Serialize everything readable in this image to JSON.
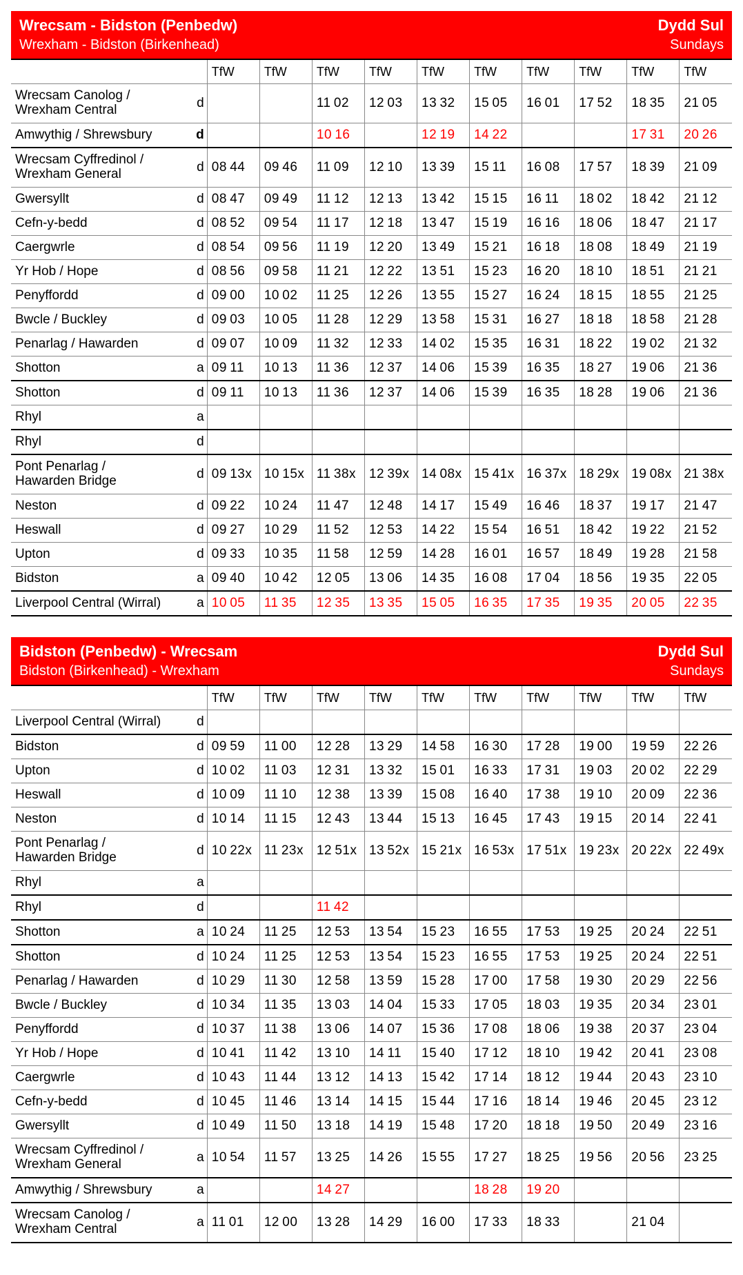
{
  "tables": [
    {
      "title_cy": "Wrecsam - Bidston (Penbedw)",
      "title_en": "Wrexham - Bidston (Birkenhead)",
      "day_cy": "Dydd Sul",
      "day_en": "Sundays",
      "operators": [
        "TfW",
        "TfW",
        "TfW",
        "TfW",
        "TfW",
        "TfW",
        "TfW",
        "TfW",
        "TfW",
        "TfW"
      ],
      "rows": [
        {
          "station": "Wrecsam Canolog /\nWrexham Central",
          "ad": "d",
          "tall": true,
          "times": [
            "",
            "",
            "1102",
            "1203",
            "1332",
            "1505",
            "1601",
            "1752",
            "1835",
            "2105"
          ]
        },
        {
          "station": "Amwythig / Shrewsbury",
          "ad": "d",
          "bold_ad": true,
          "times": [
            "",
            "",
            "1016",
            "",
            "1219",
            "1422",
            "",
            "",
            "1731",
            "2026"
          ],
          "red": [
            2,
            4,
            5,
            8,
            9
          ],
          "thick_bottom": true
        },
        {
          "station": "Wrecsam Cyffredinol /\nWrexham General",
          "ad": "d",
          "tall": true,
          "times": [
            "0844",
            "0946",
            "1109",
            "1210",
            "1339",
            "1511",
            "1608",
            "1757",
            "1839",
            "2109"
          ]
        },
        {
          "station": "Gwersyllt",
          "ad": "d",
          "times": [
            "0847",
            "0949",
            "1112",
            "1213",
            "1342",
            "1515",
            "1611",
            "1802",
            "1842",
            "2112"
          ]
        },
        {
          "station": "Cefn-y-bedd",
          "ad": "d",
          "times": [
            "0852",
            "0954",
            "1117",
            "1218",
            "1347",
            "1519",
            "1616",
            "1806",
            "1847",
            "2117"
          ]
        },
        {
          "station": "Caergwrle",
          "ad": "d",
          "times": [
            "0854",
            "0956",
            "1119",
            "1220",
            "1349",
            "1521",
            "1618",
            "1808",
            "1849",
            "2119"
          ]
        },
        {
          "station": "Yr Hob / Hope",
          "ad": "d",
          "times": [
            "0856",
            "0958",
            "1121",
            "1222",
            "1351",
            "1523",
            "1620",
            "1810",
            "1851",
            "2121"
          ]
        },
        {
          "station": "Penyffordd",
          "ad": "d",
          "times": [
            "0900",
            "1002",
            "1125",
            "1226",
            "1355",
            "1527",
            "1624",
            "1815",
            "1855",
            "2125"
          ]
        },
        {
          "station": "Bwcle / Buckley",
          "ad": "d",
          "times": [
            "0903",
            "1005",
            "1128",
            "1229",
            "1358",
            "1531",
            "1627",
            "1818",
            "1858",
            "2128"
          ]
        },
        {
          "station": "Penarlag / Hawarden",
          "ad": "d",
          "times": [
            "0907",
            "1009",
            "1132",
            "1233",
            "1402",
            "1535",
            "1631",
            "1822",
            "1902",
            "2132"
          ]
        },
        {
          "station": "Shotton",
          "ad": "a",
          "times": [
            "0911",
            "1013",
            "1136",
            "1237",
            "1406",
            "1539",
            "1635",
            "1827",
            "1906",
            "2136"
          ],
          "thick_bottom": true
        },
        {
          "station": "Shotton",
          "ad": "d",
          "times": [
            "0911",
            "1013",
            "1136",
            "1237",
            "1406",
            "1539",
            "1635",
            "1828",
            "1906",
            "2136"
          ]
        },
        {
          "station": "Rhyl",
          "ad": "a",
          "times": [
            "",
            "",
            "",
            "",
            "",
            "",
            "",
            "",
            "",
            ""
          ],
          "thick_bottom": true
        },
        {
          "station": "Rhyl",
          "ad": "d",
          "times": [
            "",
            "",
            "",
            "",
            "",
            "",
            "",
            "",
            "",
            ""
          ],
          "thick_bottom": true
        },
        {
          "station": "Pont Penarlag /\nHawarden Bridge",
          "ad": "d",
          "tall": true,
          "times": [
            "0913x",
            "1015x",
            "1138x",
            "1239x",
            "1408x",
            "1541x",
            "1637x",
            "1829x",
            "1908x",
            "2138x"
          ]
        },
        {
          "station": "Neston",
          "ad": "d",
          "times": [
            "0922",
            "1024",
            "1147",
            "1248",
            "1417",
            "1549",
            "1646",
            "1837",
            "1917",
            "2147"
          ]
        },
        {
          "station": "Heswall",
          "ad": "d",
          "times": [
            "0927",
            "1029",
            "1152",
            "1253",
            "1422",
            "1554",
            "1651",
            "1842",
            "1922",
            "2152"
          ]
        },
        {
          "station": "Upton",
          "ad": "d",
          "times": [
            "0933",
            "1035",
            "1158",
            "1259",
            "1428",
            "1601",
            "1657",
            "1849",
            "1928",
            "2158"
          ]
        },
        {
          "station": "Bidston",
          "ad": "a",
          "times": [
            "0940",
            "1042",
            "1205",
            "1306",
            "1435",
            "1608",
            "1704",
            "1856",
            "1935",
            "2205"
          ],
          "thick_bottom": true
        },
        {
          "station": "Liverpool Central (Wirral)",
          "ad": "a",
          "times": [
            "1005",
            "1135",
            "1235",
            "1335",
            "1505",
            "1635",
            "1735",
            "1935",
            "2005",
            "2235"
          ],
          "red": [
            0,
            1,
            2,
            3,
            4,
            5,
            6,
            7,
            8,
            9
          ],
          "thick_bottom": true
        }
      ]
    },
    {
      "title_cy": "Bidston (Penbedw) - Wrecsam",
      "title_en": "Bidston (Birkenhead) - Wrexham",
      "day_cy": "Dydd Sul",
      "day_en": "Sundays",
      "operators": [
        "TfW",
        "TfW",
        "TfW",
        "TfW",
        "TfW",
        "TfW",
        "TfW",
        "TfW",
        "TfW",
        "TfW"
      ],
      "rows": [
        {
          "station": "Liverpool Central (Wirral)",
          "ad": "d",
          "times": [
            "",
            "",
            "",
            "",
            "",
            "",
            "",
            "",
            "",
            ""
          ],
          "thick_bottom": true
        },
        {
          "station": "Bidston",
          "ad": "d",
          "times": [
            "0959",
            "1100",
            "1228",
            "1329",
            "1458",
            "1630",
            "1728",
            "1900",
            "1959",
            "2226"
          ]
        },
        {
          "station": "Upton",
          "ad": "d",
          "times": [
            "1002",
            "1103",
            "1231",
            "1332",
            "1501",
            "1633",
            "1731",
            "1903",
            "2002",
            "2229"
          ]
        },
        {
          "station": "Heswall",
          "ad": "d",
          "times": [
            "1009",
            "1110",
            "1238",
            "1339",
            "1508",
            "1640",
            "1738",
            "1910",
            "2009",
            "2236"
          ]
        },
        {
          "station": "Neston",
          "ad": "d",
          "times": [
            "1014",
            "1115",
            "1243",
            "1344",
            "1513",
            "1645",
            "1743",
            "1915",
            "2014",
            "2241"
          ]
        },
        {
          "station": "Pont Penarlag /\nHawarden Bridge",
          "ad": "d",
          "tall": true,
          "times": [
            "1022x",
            "1123x",
            "1251x",
            "1352x",
            "1521x",
            "1653x",
            "1751x",
            "1923x",
            "2022x",
            "2249x"
          ]
        },
        {
          "station": "Rhyl",
          "ad": "a",
          "times": [
            "",
            "",
            "",
            "",
            "",
            "",
            "",
            "",
            "",
            ""
          ],
          "thick_bottom": true
        },
        {
          "station": "Rhyl",
          "ad": "d",
          "times": [
            "",
            "",
            "1142",
            "",
            "",
            "",
            "",
            "",
            "",
            ""
          ],
          "red": [
            2
          ],
          "thick_bottom": true
        },
        {
          "station": "Shotton",
          "ad": "a",
          "times": [
            "1024",
            "1125",
            "1253",
            "1354",
            "1523",
            "1655",
            "1753",
            "1925",
            "2024",
            "2251"
          ],
          "thick_bottom": true
        },
        {
          "station": "Shotton",
          "ad": "d",
          "times": [
            "1024",
            "1125",
            "1253",
            "1354",
            "1523",
            "1655",
            "1753",
            "1925",
            "2024",
            "2251"
          ]
        },
        {
          "station": "Penarlag / Hawarden",
          "ad": "d",
          "times": [
            "1029",
            "1130",
            "1258",
            "1359",
            "1528",
            "1700",
            "1758",
            "1930",
            "2029",
            "2256"
          ]
        },
        {
          "station": "Bwcle / Buckley",
          "ad": "d",
          "times": [
            "1034",
            "1135",
            "1303",
            "1404",
            "1533",
            "1705",
            "1803",
            "1935",
            "2034",
            "2301"
          ]
        },
        {
          "station": "Penyffordd",
          "ad": "d",
          "times": [
            "1037",
            "1138",
            "1306",
            "1407",
            "1536",
            "1708",
            "1806",
            "1938",
            "2037",
            "2304"
          ]
        },
        {
          "station": "Yr Hob / Hope",
          "ad": "d",
          "times": [
            "1041",
            "1142",
            "1310",
            "1411",
            "1540",
            "1712",
            "1810",
            "1942",
            "2041",
            "2308"
          ]
        },
        {
          "station": "Caergwrle",
          "ad": "d",
          "times": [
            "1043",
            "1144",
            "1312",
            "1413",
            "1542",
            "1714",
            "1812",
            "1944",
            "2043",
            "2310"
          ]
        },
        {
          "station": "Cefn-y-bedd",
          "ad": "d",
          "times": [
            "1045",
            "1146",
            "1314",
            "1415",
            "1544",
            "1716",
            "1814",
            "1946",
            "2045",
            "2312"
          ]
        },
        {
          "station": "Gwersyllt",
          "ad": "d",
          "times": [
            "1049",
            "1150",
            "1318",
            "1419",
            "1548",
            "1720",
            "1818",
            "1950",
            "2049",
            "2316"
          ]
        },
        {
          "station": "Wrecsam Cyffredinol /\nWrexham General",
          "ad": "a",
          "tall": true,
          "times": [
            "1054",
            "1157",
            "1325",
            "1426",
            "1555",
            "1727",
            "1825",
            "1956",
            "2056",
            "2325"
          ],
          "thick_bottom": true
        },
        {
          "station": "Amwythig / Shrewsbury",
          "ad": "a",
          "times": [
            "",
            "",
            "1427",
            "",
            "",
            "1828",
            "1920",
            "",
            "",
            ""
          ],
          "red": [
            2,
            5,
            6
          ],
          "thick_bottom": true
        },
        {
          "station": "Wrecsam Canolog /\nWrexham Central",
          "ad": "a",
          "tall": true,
          "times": [
            "1101",
            "1200",
            "1328",
            "1429",
            "1600",
            "1733",
            "1833",
            "",
            "2104",
            ""
          ],
          "thick_bottom": true
        }
      ]
    }
  ]
}
